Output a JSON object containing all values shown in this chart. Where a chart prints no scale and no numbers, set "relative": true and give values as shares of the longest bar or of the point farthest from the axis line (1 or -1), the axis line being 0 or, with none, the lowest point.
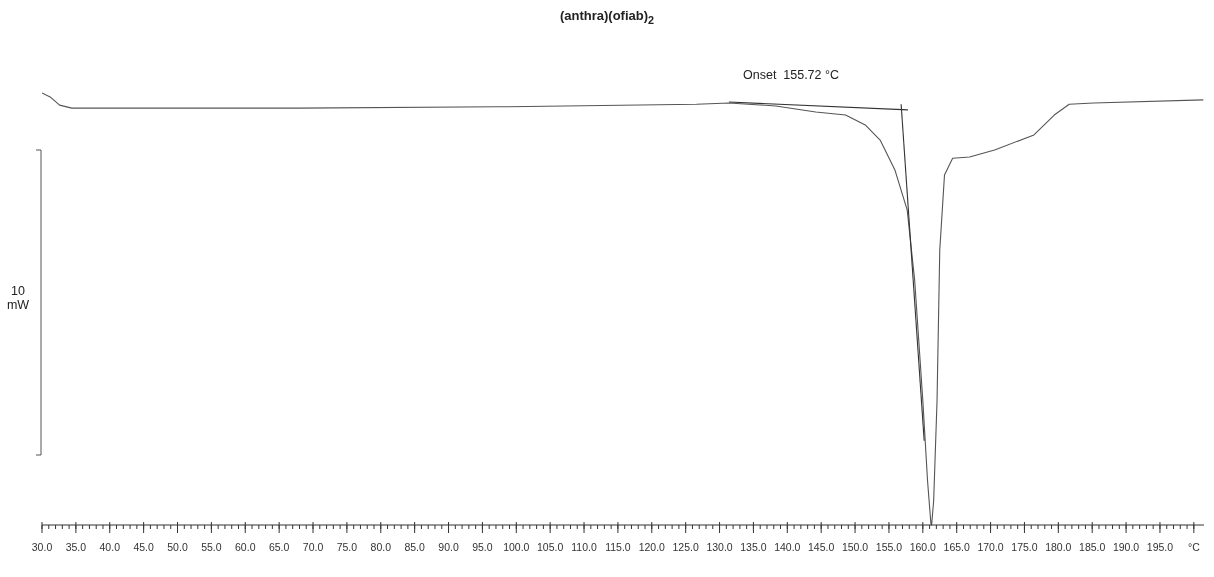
{
  "chart_data": {
    "type": "line",
    "title": "(anthra)(ofiab)$_{2}$",
    "relative": true,
    "grid": false,
    "marker": "none",
    "line_style": "solid",
    "annotations": [
      "Onset  155.72 °C",
      "10 mW"
    ],
    "xlim": [
      30,
      201.5
    ],
    "xticks": [
      {
        "value": 30,
        "label": "30.0"
      },
      {
        "value": 31,
        "label": null
      },
      {
        "value": 32,
        "label": null
      },
      {
        "value": 33,
        "label": null
      },
      {
        "value": 34,
        "label": null
      },
      {
        "value": 35,
        "label": "35.0"
      },
      {
        "value": 36,
        "label": null
      },
      {
        "value": 37,
        "label": null
      },
      {
        "value": 38,
        "label": null
      },
      {
        "value": 39,
        "label": null
      },
      {
        "value": 40,
        "label": "40.0"
      },
      {
        "value": 41,
        "label": null
      },
      {
        "value": 42,
        "label": null
      },
      {
        "value": 43,
        "label": null
      },
      {
        "value": 44,
        "label": null
      },
      {
        "value": 45,
        "label": "45.0"
      },
      {
        "value": 46,
        "label": null
      },
      {
        "value": 47,
        "label": null
      },
      {
        "value": 48,
        "label": null
      },
      {
        "value": 49,
        "label": null
      },
      {
        "value": 50,
        "label": "50.0"
      },
      {
        "value": 51,
        "label": null
      },
      {
        "value": 52,
        "label": null
      },
      {
        "value": 53,
        "label": null
      },
      {
        "value": 54,
        "label": null
      },
      {
        "value": 55,
        "label": "55.0"
      },
      {
        "value": 56,
        "label": null
      },
      {
        "value": 57,
        "label": null
      },
      {
        "value": 58,
        "label": null
      },
      {
        "value": 59,
        "label": null
      },
      {
        "value": 60,
        "label": "60.0"
      },
      {
        "value": 61,
        "label": null
      },
      {
        "value": 62,
        "label": null
      },
      {
        "value": 63,
        "label": null
      },
      {
        "value": 64,
        "label": null
      },
      {
        "value": 65,
        "label": "65.0"
      },
      {
        "value": 66,
        "label": null
      },
      {
        "value": 67,
        "label": null
      },
      {
        "value": 68,
        "label": null
      },
      {
        "value": 69,
        "label": null
      },
      {
        "value": 70,
        "label": "70.0"
      },
      {
        "value": 71,
        "label": null
      },
      {
        "value": 72,
        "label": null
      },
      {
        "value": 73,
        "label": null
      },
      {
        "value": 74,
        "label": null
      },
      {
        "value": 75,
        "label": "75.0"
      },
      {
        "value": 76,
        "label": null
      },
      {
        "value": 77,
        "label": null
      },
      {
        "value": 78,
        "label": null
      },
      {
        "value": 79,
        "label": null
      },
      {
        "value": 80,
        "label": "80.0"
      },
      {
        "value": 81,
        "label": null
      },
      {
        "value": 82,
        "label": null
      },
      {
        "value": 83,
        "label": null
      },
      {
        "value": 84,
        "label": null
      },
      {
        "value": 85,
        "label": "85.0"
      },
      {
        "value": 86,
        "label": null
      },
      {
        "value": 87,
        "label": null
      },
      {
        "value": 88,
        "label": null
      },
      {
        "value": 89,
        "label": null
      },
      {
        "value": 90,
        "label": "90.0"
      },
      {
        "value": 91,
        "label": null
      },
      {
        "value": 92,
        "label": null
      },
      {
        "value": 93,
        "label": null
      },
      {
        "value": 94,
        "label": null
      },
      {
        "value": 95,
        "label": "95.0"
      },
      {
        "value": 96,
        "label": null
      },
      {
        "value": 97,
        "label": null
      },
      {
        "value": 98,
        "label": null
      },
      {
        "value": 99,
        "label": null
      },
      {
        "value": 100,
        "label": "100.0"
      },
      {
        "value": 101,
        "label": null
      },
      {
        "value": 102,
        "label": null
      },
      {
        "value": 103,
        "label": null
      },
      {
        "value": 104,
        "label": null
      },
      {
        "value": 105,
        "label": "105.0"
      },
      {
        "value": 106,
        "label": null
      },
      {
        "value": 107,
        "label": null
      },
      {
        "value": 108,
        "label": null
      },
      {
        "value": 109,
        "label": null
      },
      {
        "value": 110,
        "label": "110.0"
      },
      {
        "value": 111,
        "label": null
      },
      {
        "value": 112,
        "label": null
      },
      {
        "value": 113,
        "label": null
      },
      {
        "value": 114,
        "label": null
      },
      {
        "value": 115,
        "label": "115.0"
      },
      {
        "value": 116,
        "label": null
      },
      {
        "value": 117,
        "label": null
      },
      {
        "value": 118,
        "label": null
      },
      {
        "value": 119,
        "label": null
      },
      {
        "value": 120,
        "label": "120.0"
      },
      {
        "value": 121,
        "label": null
      },
      {
        "value": 122,
        "label": null
      },
      {
        "value": 123,
        "label": null
      },
      {
        "value": 124,
        "label": null
      },
      {
        "value": 125,
        "label": "125.0"
      },
      {
        "value": 126,
        "label": null
      },
      {
        "value": 127,
        "label": null
      },
      {
        "value": 128,
        "label": null
      },
      {
        "value": 129,
        "label": null
      },
      {
        "value": 130,
        "label": "130.0"
      },
      {
        "value": 131,
        "label": null
      },
      {
        "value": 132,
        "label": null
      },
      {
        "value": 133,
        "label": null
      },
      {
        "value": 134,
        "label": null
      },
      {
        "value": 135,
        "label": "135.0"
      },
      {
        "value": 136,
        "label": null
      },
      {
        "value": 137,
        "label": null
      },
      {
        "value": 138,
        "label": null
      },
      {
        "value": 139,
        "label": null
      },
      {
        "value": 140,
        "label": "140.0"
      },
      {
        "value": 141,
        "label": null
      },
      {
        "value": 142,
        "label": null
      },
      {
        "value": 143,
        "label": null
      },
      {
        "value": 144,
        "label": null
      },
      {
        "value": 145,
        "label": "145.0"
      },
      {
        "value": 146,
        "label": null
      },
      {
        "value": 147,
        "label": null
      },
      {
        "value": 148,
        "label": null
      },
      {
        "value": 149,
        "label": null
      },
      {
        "value": 150,
        "label": "150.0"
      },
      {
        "value": 151,
        "label": null
      },
      {
        "value": 152,
        "label": null
      },
      {
        "value": 153,
        "label": null
      },
      {
        "value": 154,
        "label": null
      },
      {
        "value": 155,
        "label": "155.0"
      },
      {
        "value": 156,
        "label": null
      },
      {
        "value": 157,
        "label": null
      },
      {
        "value": 158,
        "label": null
      },
      {
        "value": 159,
        "label": null
      },
      {
        "value": 160,
        "label": "160.0"
      },
      {
        "value": 161,
        "label": null
      },
      {
        "value": 162,
        "label": null
      },
      {
        "value": 163,
        "label": null
      },
      {
        "value": 164,
        "label": null
      },
      {
        "value": 165,
        "label": "165.0"
      },
      {
        "value": 166,
        "label": null
      },
      {
        "value": 167,
        "label": null
      },
      {
        "value": 168,
        "label": null
      },
      {
        "value": 169,
        "label": null
      },
      {
        "value": 170,
        "label": "170.0"
      },
      {
        "value": 171,
        "label": null
      },
      {
        "value": 172,
        "label": null
      },
      {
        "value": 173,
        "label": null
      },
      {
        "value": 174,
        "label": null
      },
      {
        "value": 175,
        "label": "175.0"
      },
      {
        "value": 176,
        "label": null
      },
      {
        "value": 177,
        "label": null
      },
      {
        "value": 178,
        "label": null
      },
      {
        "value": 179,
        "label": null
      },
      {
        "value": 180,
        "label": "180.0"
      },
      {
        "value": 181,
        "label": null
      },
      {
        "value": 182,
        "label": null
      },
      {
        "value": 183,
        "label": null
      },
      {
        "value": 184,
        "label": null
      },
      {
        "value": 185,
        "label": "185.0"
      },
      {
        "value": 186,
        "label": null
      },
      {
        "value": 187,
        "label": null
      },
      {
        "value": 188,
        "label": null
      },
      {
        "value": 189,
        "label": null
      },
      {
        "value": 190,
        "label": "190.0"
      },
      {
        "value": 191,
        "label": null
      },
      {
        "value": 192,
        "label": null
      },
      {
        "value": 193,
        "label": null
      },
      {
        "value": 194,
        "label": null
      },
      {
        "value": 195,
        "label": "195.0"
      },
      {
        "value": 196,
        "label": null
      },
      {
        "value": 197,
        "label": null
      },
      {
        "value": 198,
        "label": null
      },
      {
        "value": 199,
        "label": null
      },
      {
        "value": 200,
        "label": "°C"
      }
    ],
    "series": [
      {
        "type": "line",
        "color": "#555555",
        "x": [
          30.0,
          31.2,
          32.6,
          34.4,
          67.9,
          97.2,
          126.6,
          131.4,
          138.3,
          144.2,
          148.6,
          151.5,
          153.7,
          155.9,
          157.7,
          158.8,
          160.0,
          160.7,
          161.2,
          161.3,
          161.6,
          162.1,
          162.5,
          163.2,
          164.4,
          166.9,
          170.6,
          176.4,
          179.4,
          181.6,
          185.2,
          201.4
        ],
        "values": [
          1.0,
          0.991,
          0.972,
          0.965,
          0.965,
          0.968,
          0.974,
          0.977,
          0.97,
          0.956,
          0.949,
          0.926,
          0.891,
          0.821,
          0.729,
          0.566,
          0.288,
          0.102,
          0.002,
          0,
          0.056,
          0.288,
          0.636,
          0.81,
          0.849,
          0.852,
          0.868,
          0.903,
          0.949,
          0.974,
          0.977,
          0.984
        ]
      },
      {
        "type": "line",
        "color": "#333333",
        "x": [
          131.4,
          157.8
        ],
        "values": [
          0.979,
          0.961
        ]
      },
      {
        "type": "line",
        "color": "#333333",
        "x": [
          156.8,
          160.2
        ],
        "values": [
          0.974,
          0.195
        ]
      }
    ]
  }
}
